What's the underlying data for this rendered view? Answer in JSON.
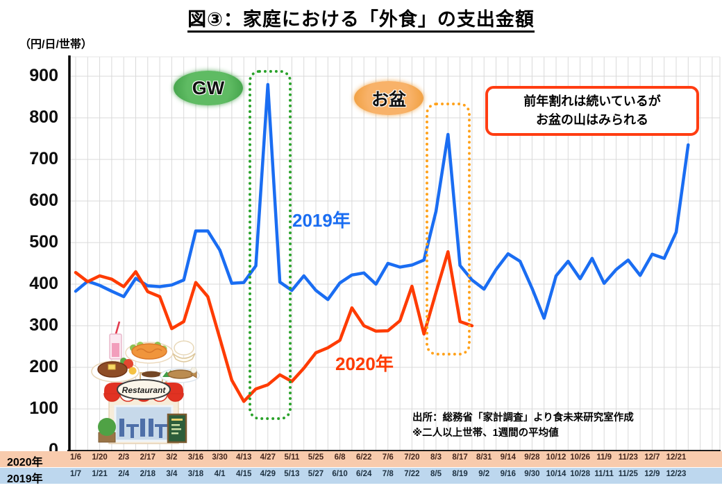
{
  "title": "図③：家庭における「外食」の支出金額",
  "y_axis": {
    "unit": "（円/日/世帯）",
    "ticks": [
      900,
      800,
      700,
      600,
      500,
      400,
      300,
      200,
      100,
      0
    ]
  },
  "annotations": {
    "gw": "GW",
    "obon": "お盆",
    "callout_line1": "前年割れは続いているが",
    "callout_line2": "お盆の山はみられる",
    "label_2019": "2019年",
    "label_2020": "2020年"
  },
  "source": {
    "line1": "出所：総務省「家計調査」より食未来研究室作成",
    "line2": "※二人以上世帯、1週間の平均値"
  },
  "x_axis": {
    "row_2020_label": "2020年",
    "row_2019_label": "2019年",
    "labels_2020": [
      "1/6",
      "1/20",
      "2/3",
      "2/17",
      "3/2",
      "3/16",
      "3/30",
      "4/13",
      "4/27",
      "5/11",
      "5/25",
      "6/8",
      "6/22",
      "7/6",
      "7/20",
      "8/3",
      "8/17",
      "8/31",
      "9/14",
      "9/28",
      "10/12",
      "10/26",
      "11/9",
      "11/23",
      "12/7",
      "12/21"
    ],
    "labels_2019": [
      "1/7",
      "1/21",
      "2/4",
      "2/18",
      "3/4",
      "3/18",
      "4/1",
      "4/15",
      "4/29",
      "5/13",
      "5/27",
      "6/10",
      "6/24",
      "7/8",
      "7/22",
      "8/5",
      "8/19",
      "9/2",
      "9/16",
      "9/30",
      "10/14",
      "10/28",
      "11/11",
      "11/25",
      "12/9",
      "12/23"
    ]
  },
  "illustration": {
    "name": "restaurant-clipart",
    "sign_text": "Restaurant"
  },
  "colors": {
    "series_2019": "#1a6df2",
    "series_2020": "#fe3b01",
    "grid": "#d9d9d9",
    "row_2020_bg": "#f8cbad",
    "row_2019_bg": "#bdd7ee",
    "gw_green": "#4aae4e",
    "obon_orange": "#f5a345",
    "callout_border": "#ff3d12"
  },
  "chart_data": {
    "type": "line",
    "title": "図③：家庭における「外食」の支出金額",
    "ylabel": "円/日/世帯",
    "ylim": [
      0,
      900
    ],
    "grid": true,
    "x_unit": "week (weekly points, labels every 2 weeks)",
    "x_tick_labels_2020": [
      "1/6",
      "1/20",
      "2/3",
      "2/17",
      "3/2",
      "3/16",
      "3/30",
      "4/13",
      "4/27",
      "5/11",
      "5/25",
      "6/8",
      "6/22",
      "7/6",
      "7/20",
      "8/3",
      "8/17",
      "8/31",
      "9/14",
      "9/28",
      "10/12",
      "10/26",
      "11/9",
      "11/23",
      "12/7",
      "12/21"
    ],
    "x_tick_labels_2019": [
      "1/7",
      "1/21",
      "2/4",
      "2/18",
      "3/4",
      "3/18",
      "4/1",
      "4/15",
      "4/29",
      "5/13",
      "5/27",
      "6/10",
      "6/24",
      "7/8",
      "7/22",
      "8/5",
      "8/19",
      "9/2",
      "9/16",
      "9/30",
      "10/14",
      "10/28",
      "11/11",
      "11/25",
      "12/9",
      "12/23"
    ],
    "series": [
      {
        "name": "2019年",
        "color": "#1a6df2",
        "start_week": "1/7",
        "values": [
          383,
          407,
          397,
          383,
          370,
          414,
          396,
          394,
          398,
          410,
          528,
          528,
          482,
          402,
          404,
          444,
          880,
          405,
          385,
          420,
          385,
          363,
          403,
          422,
          427,
          400,
          450,
          441,
          446,
          458,
          575,
          760,
          445,
          410,
          388,
          435,
          473,
          455,
          390,
          318,
          420,
          455,
          413,
          462,
          402,
          435,
          458,
          421,
          472,
          462,
          525,
          735
        ]
      },
      {
        "name": "2020年",
        "color": "#fe3b01",
        "start_week": "1/6",
        "values": [
          428,
          406,
          420,
          412,
          394,
          430,
          382,
          370,
          293,
          310,
          404,
          370,
          270,
          169,
          118,
          148,
          158,
          182,
          166,
          198,
          235,
          247,
          265,
          343,
          300,
          287,
          288,
          312,
          395,
          280,
          380,
          478,
          310,
          300
        ]
      }
    ],
    "annotations": [
      "GW (4/27・4/29週のピーク)",
      "お盆 (8/10・8/12週のピーク)",
      "前年割れは続いているが お盆の山はみられる"
    ]
  }
}
